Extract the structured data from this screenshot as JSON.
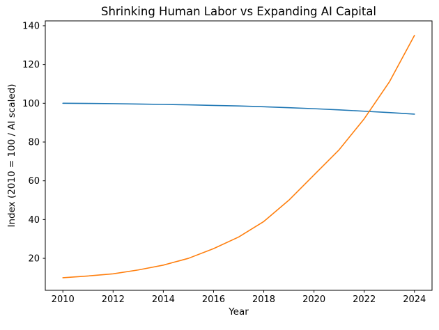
{
  "chart_data": {
    "type": "line",
    "title": "Shrinking Human Labor vs Expanding AI Capital",
    "xlabel": "Year",
    "ylabel": "Index (2010 = 100 / AI scaled)",
    "x": [
      2010,
      2011,
      2012,
      2013,
      2014,
      2015,
      2016,
      2017,
      2018,
      2019,
      2020,
      2021,
      2022,
      2023,
      2024
    ],
    "series": [
      {
        "name": "Human Labor",
        "color": "#1f77b4",
        "values": [
          100.0,
          99.9,
          99.8,
          99.6,
          99.4,
          99.2,
          98.9,
          98.6,
          98.2,
          97.7,
          97.2,
          96.6,
          95.9,
          95.2,
          94.4
        ]
      },
      {
        "name": "AI Capital",
        "color": "#ff7f0e",
        "values": [
          10.0,
          10.9,
          12.0,
          14.0,
          16.5,
          20.0,
          25.0,
          31.0,
          39.0,
          50.0,
          63.0,
          76.0,
          92.0,
          111.0,
          135.0
        ]
      }
    ],
    "xlim": [
      2009.3,
      2024.7
    ],
    "ylim": [
      3.5,
      142.5
    ],
    "x_ticks": [
      2010,
      2012,
      2014,
      2016,
      2018,
      2020,
      2022,
      2024
    ],
    "y_ticks": [
      20,
      40,
      60,
      80,
      100,
      120,
      140
    ],
    "grid": false,
    "legend": "none",
    "line_width": 1.6,
    "spine_color": "#000000"
  }
}
